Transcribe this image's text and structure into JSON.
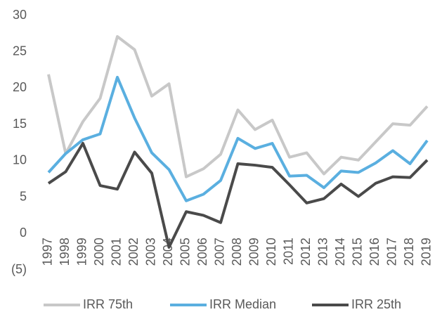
{
  "chart_data": {
    "type": "line",
    "categories": [
      "1997",
      "1998",
      "1999",
      "2000",
      "2001",
      "2002",
      "2003",
      "2004",
      "2005",
      "2006",
      "2007",
      "2008",
      "2009",
      "2010",
      "2011",
      "2012",
      "2013",
      "2014",
      "2015",
      "2016",
      "2017",
      "2018",
      "2019"
    ],
    "series": [
      {
        "name": "IRR 75th",
        "color": "#c8c8c8",
        "values": [
          21.9,
          11.0,
          15.4,
          18.6,
          27.1,
          25.3,
          18.9,
          20.6,
          7.8,
          8.9,
          10.9,
          17.0,
          14.3,
          15.6,
          10.5,
          11.1,
          8.2,
          10.5,
          10.1,
          12.6,
          15.1,
          14.9,
          17.5
        ]
      },
      {
        "name": "IRR Median",
        "color": "#5aafe0",
        "values": [
          8.4,
          11.0,
          12.9,
          13.7,
          21.5,
          15.9,
          11.1,
          8.8,
          4.5,
          5.4,
          7.3,
          13.1,
          11.7,
          12.4,
          7.9,
          8.0,
          6.3,
          8.6,
          8.4,
          9.7,
          11.4,
          9.6,
          12.8
        ]
      },
      {
        "name": "IRR 25th",
        "color": "#4a4a4a",
        "values": [
          6.9,
          8.5,
          12.4,
          6.6,
          6.1,
          11.2,
          8.3,
          -1.9,
          3.0,
          2.5,
          1.5,
          9.6,
          9.4,
          9.1,
          6.7,
          4.2,
          4.8,
          6.8,
          5.1,
          6.9,
          7.8,
          7.7,
          10.1
        ]
      }
    ],
    "ylim": [
      -5,
      30
    ],
    "yticks": [
      {
        "value": -5,
        "label": "(5)"
      },
      0,
      5,
      10,
      15,
      20,
      25,
      30
    ],
    "grid": false,
    "legend": "bottom"
  }
}
